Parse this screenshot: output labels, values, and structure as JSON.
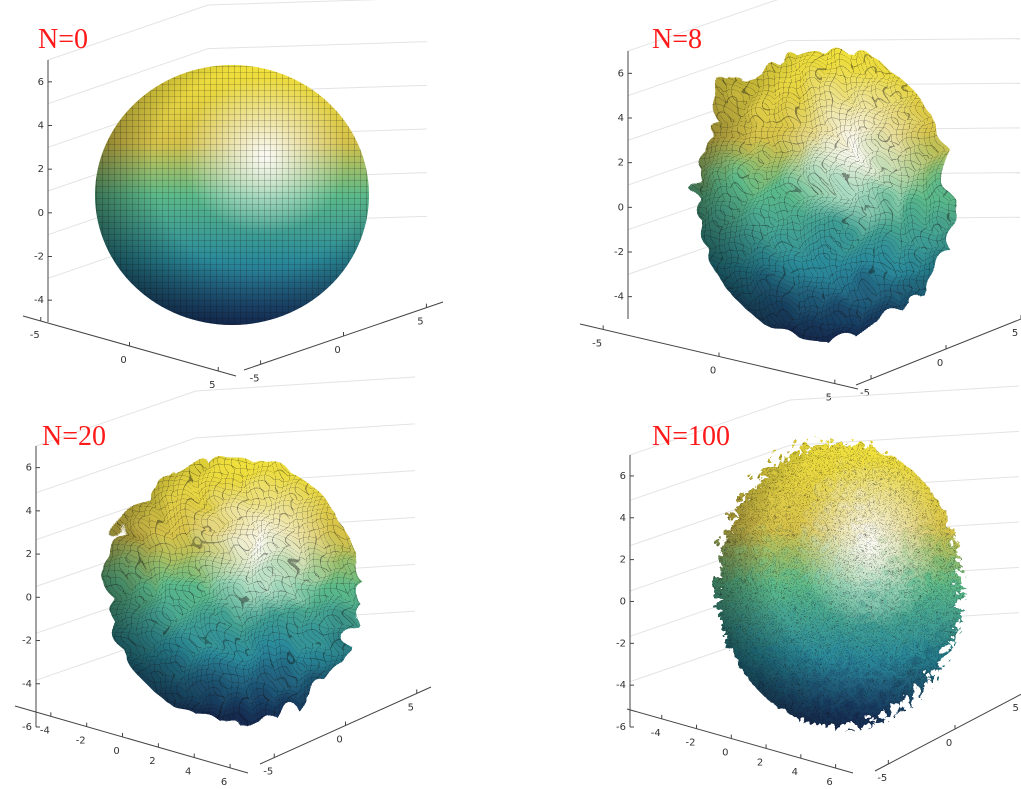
{
  "chart_data": [
    {
      "type": "surface",
      "title": "N=0",
      "zlim": [
        -5,
        7
      ],
      "zticks": [
        6,
        4,
        2,
        0,
        -2,
        -4
      ],
      "xlim": [
        -6,
        6
      ],
      "xticks": [
        -5,
        0,
        5
      ],
      "ylim": [
        -6,
        6
      ],
      "yticks": [
        -5,
        0,
        5
      ]
    },
    {
      "type": "surface",
      "title": "N=8",
      "zlim": [
        -5,
        7
      ],
      "zticks": [
        6,
        4,
        2,
        0,
        -2,
        -4
      ],
      "xlim": [
        -6,
        6
      ],
      "xticks": [
        -5,
        0,
        5
      ],
      "ylim": [
        -6,
        6
      ],
      "yticks": [
        -5,
        0,
        5
      ]
    },
    {
      "type": "surface",
      "title": "N=20",
      "zlim": [
        -6,
        7
      ],
      "zticks": [
        6,
        4,
        2,
        0,
        -2,
        -4,
        -6
      ],
      "xlim": [
        -6,
        7
      ],
      "xticks": [
        -4,
        -2,
        0,
        2,
        4,
        6
      ],
      "ylim": [
        -6,
        6
      ],
      "yticks": [
        -5,
        0,
        5
      ]
    },
    {
      "type": "surface",
      "title": "N=100",
      "zlim": [
        -6,
        7
      ],
      "zticks": [
        6,
        4,
        2,
        0,
        -2,
        -4,
        -6
      ],
      "xlim": [
        -6,
        7
      ],
      "xticks": [
        -4,
        -2,
        0,
        2,
        4,
        6
      ],
      "ylim": [
        -6,
        6
      ],
      "yticks": [
        -5,
        0,
        5
      ]
    }
  ]
}
